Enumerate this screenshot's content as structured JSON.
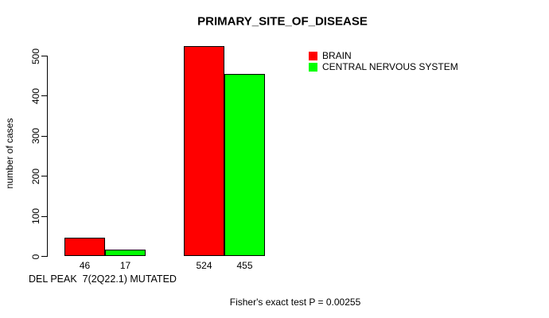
{
  "chart_data": {
    "type": "bar",
    "title": "PRIMARY_SITE_OF_DISEASE",
    "ylabel": "number of cases",
    "group_axis_label": "DEL PEAK  7(2Q22.1) MUTATED",
    "annotation": "Fisher's exact test P = 0.00255",
    "yticks": [
      0,
      100,
      200,
      300,
      400,
      500
    ],
    "ylim": [
      0,
      524
    ],
    "grid": false,
    "legend_position": "top-right",
    "categories": [
      "group-1",
      "group-2"
    ],
    "series": [
      {
        "name": "BRAIN",
        "color": "#ff0000",
        "values": [
          46,
          524
        ]
      },
      {
        "name": "CENTRAL NERVOUS SYSTEM",
        "color": "#00ff00",
        "values": [
          17,
          455
        ]
      }
    ],
    "bar_value_labels": [
      [
        "46",
        "524"
      ],
      [
        "17",
        "455"
      ]
    ]
  },
  "colors": {
    "background": "#ffffff",
    "text": "#000000",
    "axis": "#000000",
    "bar_border": "#000000"
  }
}
